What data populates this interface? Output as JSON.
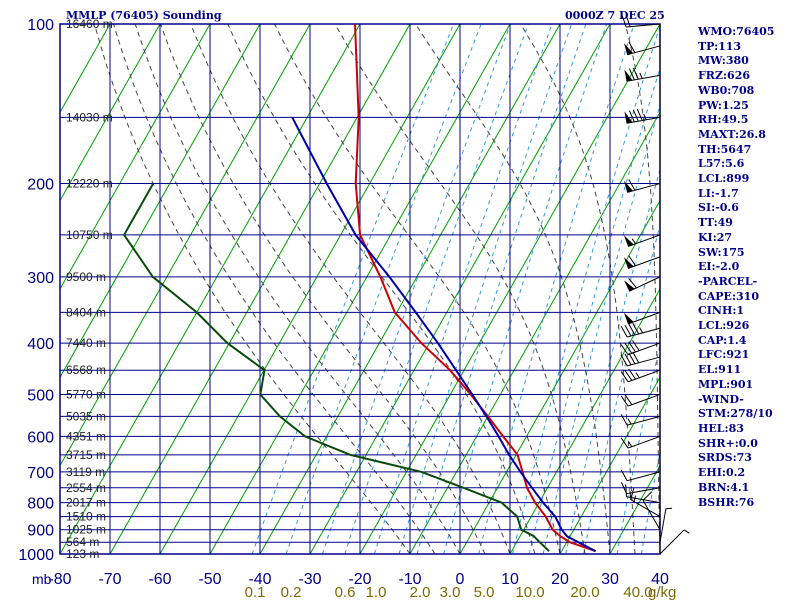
{
  "header": {
    "title": "MMLP (76405) Sounding",
    "datetime": "0000Z  7 DEC 25"
  },
  "colors": {
    "frame": "#00008b",
    "isotherm_green": "#00a000",
    "temperature": "#cc0000",
    "dewpoint": "#0a4a0a",
    "parcel": "#0000aa",
    "mixing_ratio_cyan": "#3399dd",
    "moist_adiabat": "#444444",
    "mixing_ratio_labels": "#7a6a00"
  },
  "params": [
    "WMO:76405",
    "TP:113",
    "MW:380",
    "FRZ:626",
    "WB0:708",
    "PW:1.25",
    "RH:49.5",
    "MAXT:26.8",
    "TH:5647",
    "L57:5.6",
    "LCL:899",
    "LI:-1.7",
    "SI:-0.6",
    "TT:49",
    "KI:27",
    "SW:175",
    "EI:-2.0",
    "-PARCEL-",
    "CAPE:310",
    "CINH:1",
    "LCL:926",
    "CAP:1.4",
    "LFC:921",
    "EL:911",
    "MPL:901",
    "-WIND-",
    "STM:278/10",
    "HEL:83",
    "SHR+:0.0",
    "SRDS:73",
    "EHI:0.2",
    "BRN:4.1",
    "BSHR:76"
  ],
  "chart_data": {
    "type": "line",
    "title": "MMLP (76405) Sounding",
    "subtitle": "0000Z  7 DEC 25",
    "xlabel": "",
    "ylabel": "mb",
    "xlim": [
      -80,
      40
    ],
    "ylim": [
      1000,
      100
    ],
    "y_scale": "log",
    "grid": true,
    "x_ticks": [
      -80,
      -70,
      -60,
      -50,
      -40,
      -30,
      -20,
      -10,
      0,
      10,
      20,
      30,
      40
    ],
    "x_tick_labels": [
      "-80",
      "-70",
      "-60",
      "-50",
      "-40",
      "-30",
      "-20",
      "-10",
      "0",
      "10",
      "20",
      "30",
      "40"
    ],
    "y_ticks": [
      100,
      200,
      300,
      400,
      500,
      600,
      700,
      800,
      900,
      1000
    ],
    "y_tick_labels": [
      "100",
      "200",
      "300",
      "400",
      "500",
      "600",
      "700",
      "800",
      "900",
      "1000"
    ],
    "height_labels": [
      {
        "p": 100,
        "text": "16460 m"
      },
      {
        "p": 150,
        "text": "14030 m"
      },
      {
        "p": 200,
        "text": "12220 m"
      },
      {
        "p": 250,
        "text": "10750 m"
      },
      {
        "p": 300,
        "text": "9500 m"
      },
      {
        "p": 350,
        "text": "8404 m"
      },
      {
        "p": 400,
        "text": "7440 m"
      },
      {
        "p": 450,
        "text": "6568 m"
      },
      {
        "p": 500,
        "text": "5770 m"
      },
      {
        "p": 550,
        "text": "5035 m"
      },
      {
        "p": 600,
        "text": "4351 m"
      },
      {
        "p": 650,
        "text": "3715 m"
      },
      {
        "p": 700,
        "text": "3119 m"
      },
      {
        "p": 750,
        "text": "2554 m"
      },
      {
        "p": 800,
        "text": "2017 m"
      },
      {
        "p": 850,
        "text": "1510 m"
      },
      {
        "p": 900,
        "text": "1025 m"
      },
      {
        "p": 950,
        "text": "564 m"
      },
      {
        "p": 1000,
        "text": "123 m"
      }
    ],
    "mixing_ratio_labels": [
      "0.1",
      "0.2",
      "0.6",
      "1.0",
      "2.0",
      "3.0",
      "5.0",
      "10.0",
      "20.0",
      "40.0"
    ],
    "mixing_ratio_unit": "g/kg",
    "series": [
      {
        "name": "temperature",
        "points": [
          {
            "p": 988,
            "t": 26.8
          },
          {
            "p": 975,
            "t": 24.8
          },
          {
            "p": 950,
            "t": 20.6
          },
          {
            "p": 925,
            "t": 18.0
          },
          {
            "p": 900,
            "t": 15.8
          },
          {
            "p": 850,
            "t": 12.9
          },
          {
            "p": 800,
            "t": 9.2
          },
          {
            "p": 750,
            "t": 5.9
          },
          {
            "p": 700,
            "t": 3.2
          },
          {
            "p": 650,
            "t": 0.3
          },
          {
            "p": 600,
            "t": -4.7
          },
          {
            "p": 550,
            "t": -10.0
          },
          {
            "p": 500,
            "t": -15.9
          },
          {
            "p": 450,
            "t": -22.8
          },
          {
            "p": 400,
            "t": -31.6
          },
          {
            "p": 350,
            "t": -40.4
          },
          {
            "p": 300,
            "t": -47.3
          },
          {
            "p": 250,
            "t": -56.1
          },
          {
            "p": 200,
            "t": -62.8
          },
          {
            "p": 150,
            "t": -69.7
          },
          {
            "p": 100,
            "t": -81.0
          }
        ]
      },
      {
        "name": "dewpoint",
        "points": [
          {
            "p": 988,
            "t": 17.5
          },
          {
            "p": 950,
            "t": 14.6
          },
          {
            "p": 925,
            "t": 12.7
          },
          {
            "p": 900,
            "t": 9.5
          },
          {
            "p": 850,
            "t": 7.2
          },
          {
            "p": 800,
            "t": 2.5
          },
          {
            "p": 750,
            "t": -6.8
          },
          {
            "p": 700,
            "t": -17.0
          },
          {
            "p": 650,
            "t": -33.2
          },
          {
            "p": 600,
            "t": -44.3
          },
          {
            "p": 550,
            "t": -51.6
          },
          {
            "p": 500,
            "t": -58.0
          },
          {
            "p": 450,
            "t": -59.9
          },
          {
            "p": 400,
            "t": -70.4
          },
          {
            "p": 350,
            "t": -80.0
          },
          {
            "p": 300,
            "t": -92.8
          },
          {
            "p": 250,
            "t": -103.3
          },
          {
            "p": 200,
            "t": -103.3
          }
        ]
      },
      {
        "name": "parcel",
        "points": [
          {
            "p": 988,
            "t": 26.8
          },
          {
            "p": 926,
            "t": 19.4
          },
          {
            "p": 900,
            "t": 17.6
          },
          {
            "p": 850,
            "t": 14.8
          },
          {
            "p": 800,
            "t": 10.8
          },
          {
            "p": 750,
            "t": 6.9
          },
          {
            "p": 700,
            "t": 2.8
          },
          {
            "p": 650,
            "t": -1.4
          },
          {
            "p": 600,
            "t": -5.6
          },
          {
            "p": 550,
            "t": -10.3
          },
          {
            "p": 500,
            "t": -15.6
          },
          {
            "p": 450,
            "t": -21.6
          },
          {
            "p": 400,
            "t": -28.3
          },
          {
            "p": 350,
            "t": -36.2
          },
          {
            "p": 300,
            "t": -45.5
          },
          {
            "p": 250,
            "t": -57.0
          },
          {
            "p": 200,
            "t": -68.6
          },
          {
            "p": 150,
            "t": -83.0
          }
        ]
      }
    ],
    "wind_barbs": [
      {
        "p": 100,
        "dir": 265,
        "spd": 20
      },
      {
        "p": 110,
        "dir": 255,
        "spd": 60
      },
      {
        "p": 125,
        "dir": 260,
        "spd": 75
      },
      {
        "p": 150,
        "dir": 260,
        "spd": 85
      },
      {
        "p": 200,
        "dir": 255,
        "spd": 60
      },
      {
        "p": 250,
        "dir": 250,
        "spd": 55
      },
      {
        "p": 275,
        "dir": 250,
        "spd": 60
      },
      {
        "p": 300,
        "dir": 245,
        "spd": 60
      },
      {
        "p": 350,
        "dir": 250,
        "spd": 50
      },
      {
        "p": 375,
        "dir": 255,
        "spd": 45
      },
      {
        "p": 400,
        "dir": 250,
        "spd": 40
      },
      {
        "p": 425,
        "dir": 255,
        "spd": 40
      },
      {
        "p": 450,
        "dir": 250,
        "spd": 35
      },
      {
        "p": 500,
        "dir": 250,
        "spd": 20
      },
      {
        "p": 550,
        "dir": 255,
        "spd": 15
      },
      {
        "p": 600,
        "dir": 250,
        "spd": 15
      },
      {
        "p": 700,
        "dir": 255,
        "spd": 10
      },
      {
        "p": 750,
        "dir": 260,
        "spd": 10
      },
      {
        "p": 800,
        "dir": 280,
        "spd": 15
      },
      {
        "p": 850,
        "dir": 300,
        "spd": 15
      },
      {
        "p": 900,
        "dir": 330,
        "spd": 10
      },
      {
        "p": 950,
        "dir": 10,
        "spd": 5
      },
      {
        "p": 1000,
        "dir": 45,
        "spd": 5
      }
    ]
  }
}
